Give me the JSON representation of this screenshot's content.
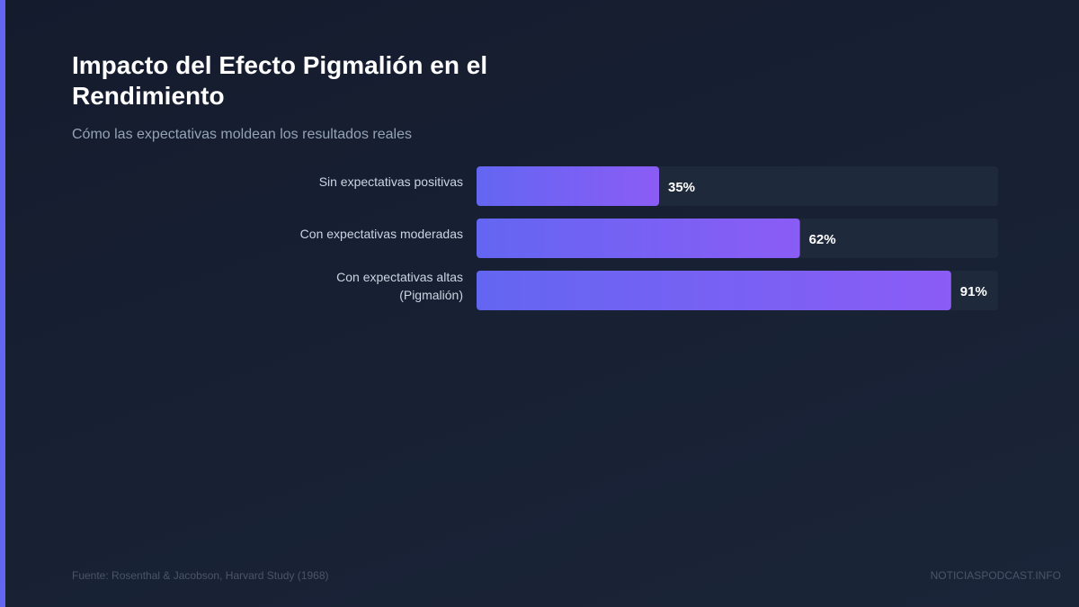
{
  "title": "Impacto del Efecto Pigmalión en el Rendimiento",
  "subtitle": "Cómo las expectativas moldean los resultados reales",
  "footer": {
    "source": "Fuente: Rosenthal & Jacobson, Harvard Study (1968)",
    "brand": "NOTICIASPODCAST.INFO"
  },
  "colors": {
    "accent": "#6366f1",
    "bar_start": "#6366f1",
    "bar_end": "#8b5cf6",
    "track": "#1e293b"
  },
  "chart_data": {
    "type": "bar",
    "orientation": "horizontal",
    "categories": [
      [
        "Sin expectativas positivas"
      ],
      [
        "Con expectativas moderadas"
      ],
      [
        "Con expectativas altas",
        "(Pigmalión)"
      ]
    ],
    "values": [
      35,
      62,
      91
    ],
    "value_labels": [
      "35%",
      "62%",
      "91%"
    ],
    "xlim": [
      0,
      100
    ],
    "grid": false,
    "legend": "none"
  }
}
